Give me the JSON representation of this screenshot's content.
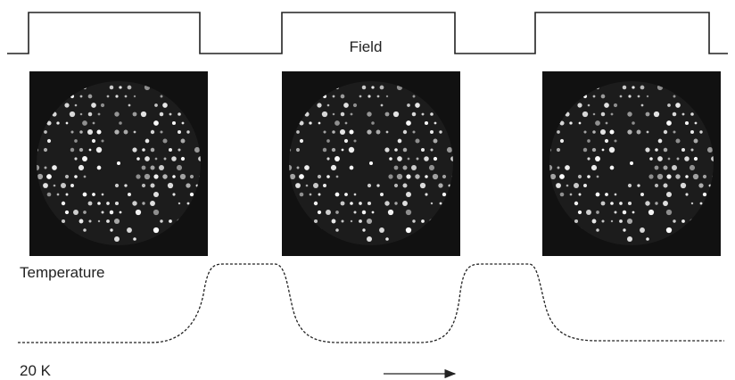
{
  "labels": {
    "field": "Field",
    "temperature": "Temperature",
    "base_temperature": "20 K"
  }
}
